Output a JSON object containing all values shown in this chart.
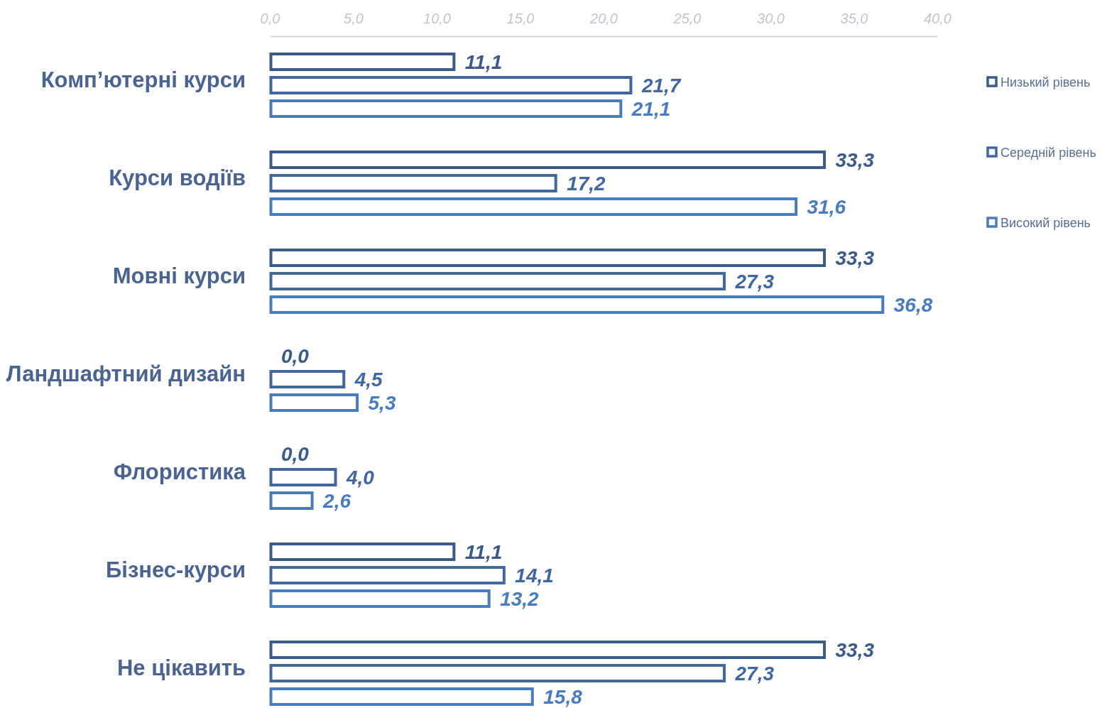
{
  "chart_data": {
    "type": "bar",
    "orientation": "horizontal",
    "categories": [
      "Комп’ютерні курси",
      "Курси водіїв",
      "Мовні курси",
      "Ландшафтний дизайн",
      "Флористика",
      "Бізнес-курси",
      "Не цікавить"
    ],
    "series": [
      {
        "name": "Низький рівень",
        "color": "#3b5a8a",
        "values": [
          11.1,
          33.3,
          33.3,
          0.0,
          0.0,
          11.1,
          33.3
        ],
        "value_labels": [
          "11,1",
          "33,3",
          "33,3",
          "0,0",
          "0,0",
          "11,1",
          "33,3"
        ]
      },
      {
        "name": "Середній рівень",
        "color": "#41679e",
        "values": [
          21.7,
          17.2,
          27.3,
          4.5,
          4.0,
          14.1,
          27.3
        ],
        "value_labels": [
          "21,7",
          "17,2",
          "27,3",
          "4,5",
          "4,0",
          "14,1",
          "27,3"
        ]
      },
      {
        "name": "Високий рівень",
        "color": "#4a7cbd",
        "values": [
          21.1,
          31.6,
          36.8,
          5.3,
          2.6,
          13.2,
          15.8
        ],
        "value_labels": [
          "21,1",
          "31,6",
          "36,8",
          "5,3",
          "2,6",
          "13,2",
          "15,8"
        ]
      }
    ],
    "xlim": [
      0,
      40
    ],
    "xticks": [
      {
        "value": 0,
        "label": "0,0"
      },
      {
        "value": 5,
        "label": "5,0"
      },
      {
        "value": 10,
        "label": "10,0"
      },
      {
        "value": 15,
        "label": "15,0"
      },
      {
        "value": 20,
        "label": "20,0"
      },
      {
        "value": 25,
        "label": "25,0"
      },
      {
        "value": 30,
        "label": "30,0"
      },
      {
        "value": 35,
        "label": "35,0"
      },
      {
        "value": 40,
        "label": "40,0"
      }
    ],
    "grid": false,
    "legend": "right"
  }
}
